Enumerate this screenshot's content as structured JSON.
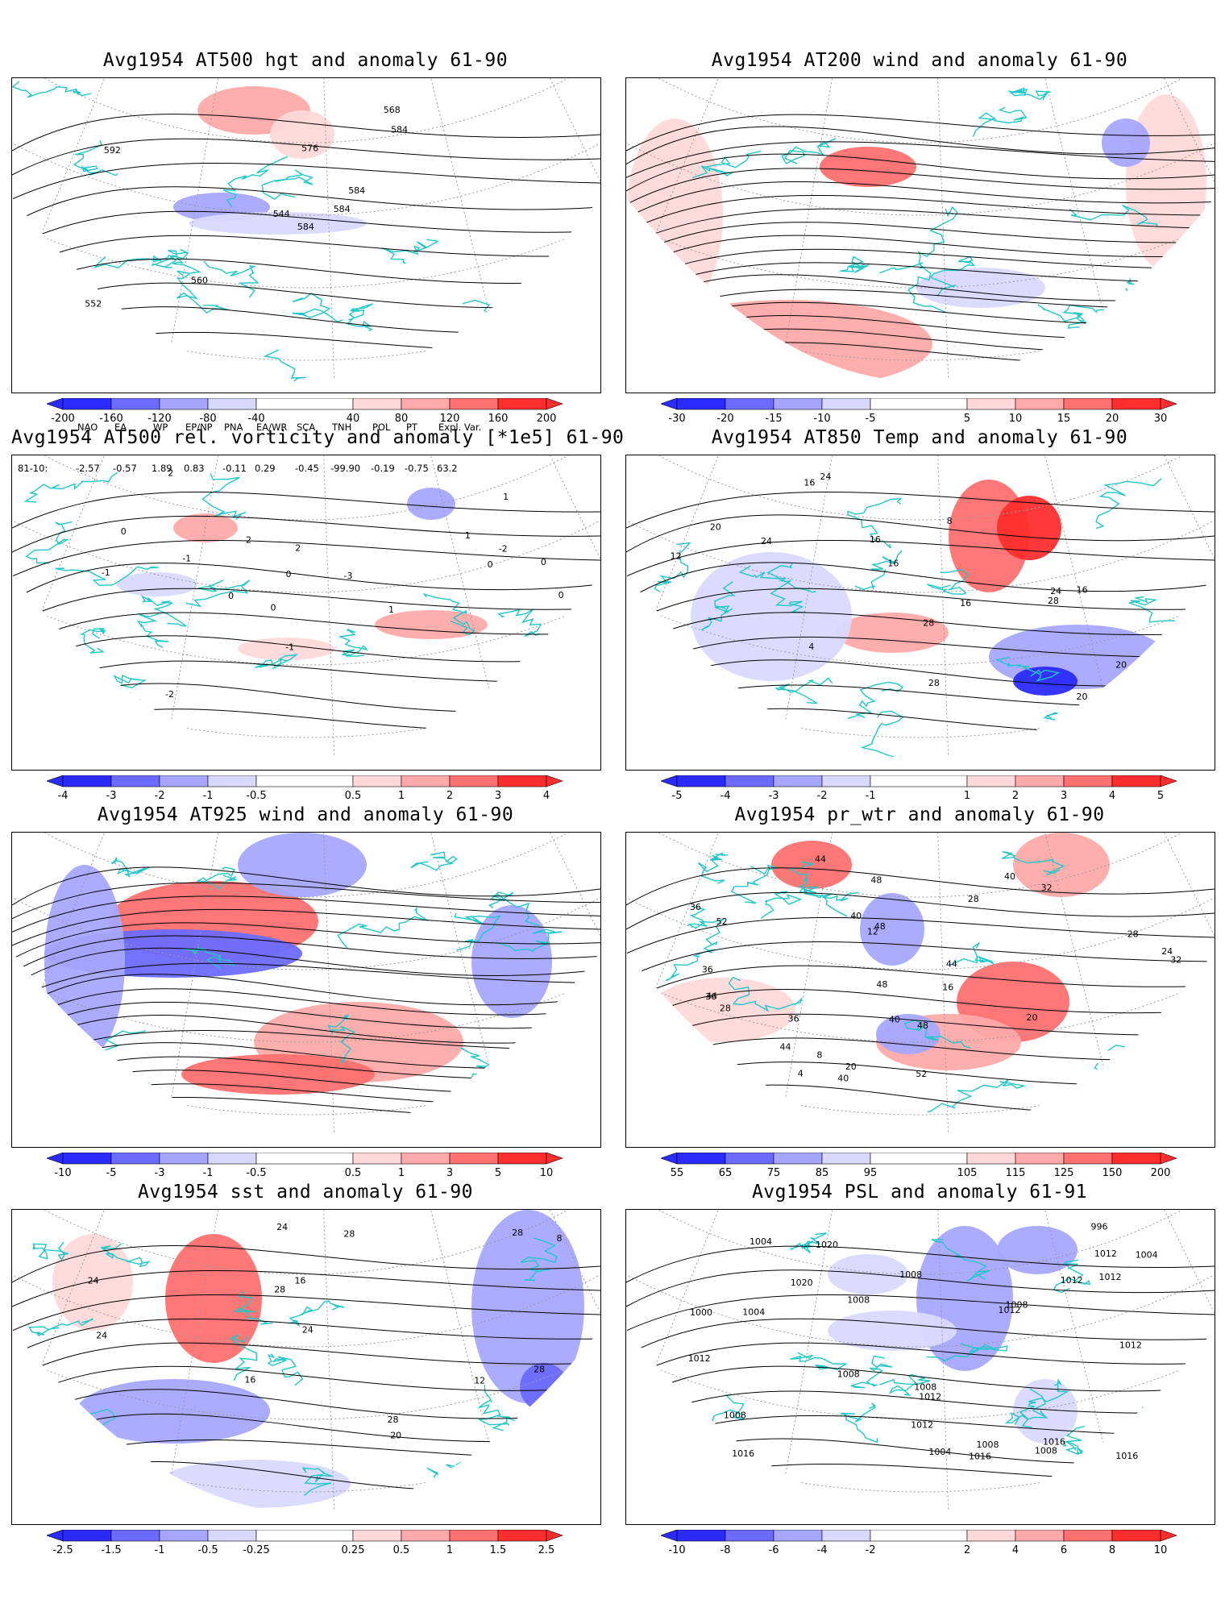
{
  "colors": {
    "neg3": "#2b2bff",
    "neg2": "#6b6bff",
    "neg1": "#a6a6ff",
    "neg0": "#d9d9ff",
    "pos0": "#ffd9d9",
    "pos1": "#ffaaaa",
    "pos2": "#ff7070",
    "pos3": "#ff2e2e",
    "coast": "#22c7c7",
    "contour": "#000000"
  },
  "panels": [
    {
      "title": "Avg1954 AT500 hgt and anomaly 61-90",
      "colorbar_ticks": [
        "-200",
        "-160",
        "-120",
        "-80",
        "-40",
        "40",
        "80",
        "120",
        "160",
        "200"
      ],
      "contour_labels": [
        "584",
        "592",
        "544",
        "552",
        "584",
        "560",
        "568",
        "576",
        "584",
        "584"
      ],
      "style": "hgt"
    },
    {
      "title": "Avg1954 AT200 wind and anomaly 61-90",
      "colorbar_ticks": [
        "-30",
        "-20",
        "-15",
        "-10",
        "-5",
        "5",
        "10",
        "15",
        "20",
        "30"
      ],
      "contour_labels": [],
      "style": "wind200"
    },
    {
      "title": "Avg1954 AT500 rel. vorticity and anomaly [*1e5] 61-90",
      "colorbar_ticks": [
        "-4",
        "-3",
        "-2",
        "-1",
        "-0.5",
        "0.5",
        "1",
        "2",
        "3",
        "4"
      ],
      "contour_labels": [
        "0",
        "0",
        "-1",
        "-2",
        "2",
        "-1",
        "-2",
        "1",
        "0",
        "0",
        "-1",
        "2",
        "-3",
        "0",
        "1",
        "2",
        "0",
        "0",
        "1"
      ],
      "style": "vort"
    },
    {
      "title": "Avg1954 AT850 Temp and anomaly 61-90",
      "colorbar_ticks": [
        "-5",
        "-4",
        "-3",
        "-2",
        "-1",
        "1",
        "2",
        "3",
        "4",
        "5"
      ],
      "contour_labels": [
        "24",
        "20",
        "16",
        "16",
        "4",
        "8",
        "12",
        "16",
        "20",
        "28",
        "24",
        "24",
        "20",
        "16",
        "28",
        "28",
        "16"
      ],
      "style": "temp850"
    },
    {
      "title": "Avg1954 AT925 wind and anomaly 61-90",
      "colorbar_ticks": [
        "-10",
        "-5",
        "-3",
        "-1",
        "-0.5",
        "0.5",
        "1",
        "3",
        "5",
        "10"
      ],
      "contour_labels": [],
      "style": "wind925"
    },
    {
      "title": "Avg1954 pr_wtr and anomaly 61-90",
      "colorbar_ticks": [
        "55",
        "65",
        "75",
        "85",
        "95",
        "105",
        "115",
        "125",
        "150",
        "200"
      ],
      "contour_labels": [
        "40",
        "48",
        "52",
        "36",
        "44",
        "32",
        "28",
        "24",
        "20",
        "16",
        "12",
        "8",
        "4",
        "20",
        "28",
        "36",
        "44",
        "48",
        "40",
        "44",
        "48",
        "40",
        "36",
        "32",
        "52",
        "48",
        "44",
        "36",
        "28",
        "40"
      ],
      "style": "prwtr"
    },
    {
      "title": "Avg1954 sst and anomaly 61-90",
      "colorbar_ticks": [
        "-2.5",
        "-1.5",
        "-1",
        "-0.5",
        "-0.25",
        "0.25",
        "0.5",
        "1",
        "1.5",
        "2.5"
      ],
      "contour_labels": [
        "28",
        "24",
        "28",
        "16",
        "8",
        "12",
        "16",
        "20",
        "24",
        "28",
        "24",
        "28",
        "24",
        "28"
      ],
      "style": "sst"
    },
    {
      "title": "Avg1954 PSL and anomaly 61-91",
      "colorbar_ticks": [
        "-10",
        "-8",
        "-6",
        "-4",
        "-2",
        "2",
        "4",
        "6",
        "8",
        "10"
      ],
      "contour_labels": [
        "1016",
        "1016",
        "1012",
        "1016",
        "1012",
        "1004",
        "1004",
        "1008",
        "996",
        "1008",
        "1008",
        "1012",
        "1008",
        "1008",
        "1020",
        "1012",
        "1000",
        "1004",
        "1008",
        "1004",
        "1012",
        "1012",
        "1020",
        "1016",
        "1012",
        "1008",
        "1008",
        "1012"
      ],
      "style": "psl"
    }
  ],
  "teleconnections": {
    "headers": [
      "NAO",
      "EA",
      "WP",
      "EP/NP",
      "PNA",
      "EA/WR",
      "SCA",
      "TNH",
      "POL",
      "PT",
      "Expl. Var."
    ],
    "row_label": "81-10:",
    "values": [
      "-2.57",
      "-0.57",
      "1.89",
      "0.83",
      "-0.11",
      "0.29",
      "-0.45",
      "-99.90",
      "-0.19",
      "-0.75",
      "63.2"
    ]
  }
}
